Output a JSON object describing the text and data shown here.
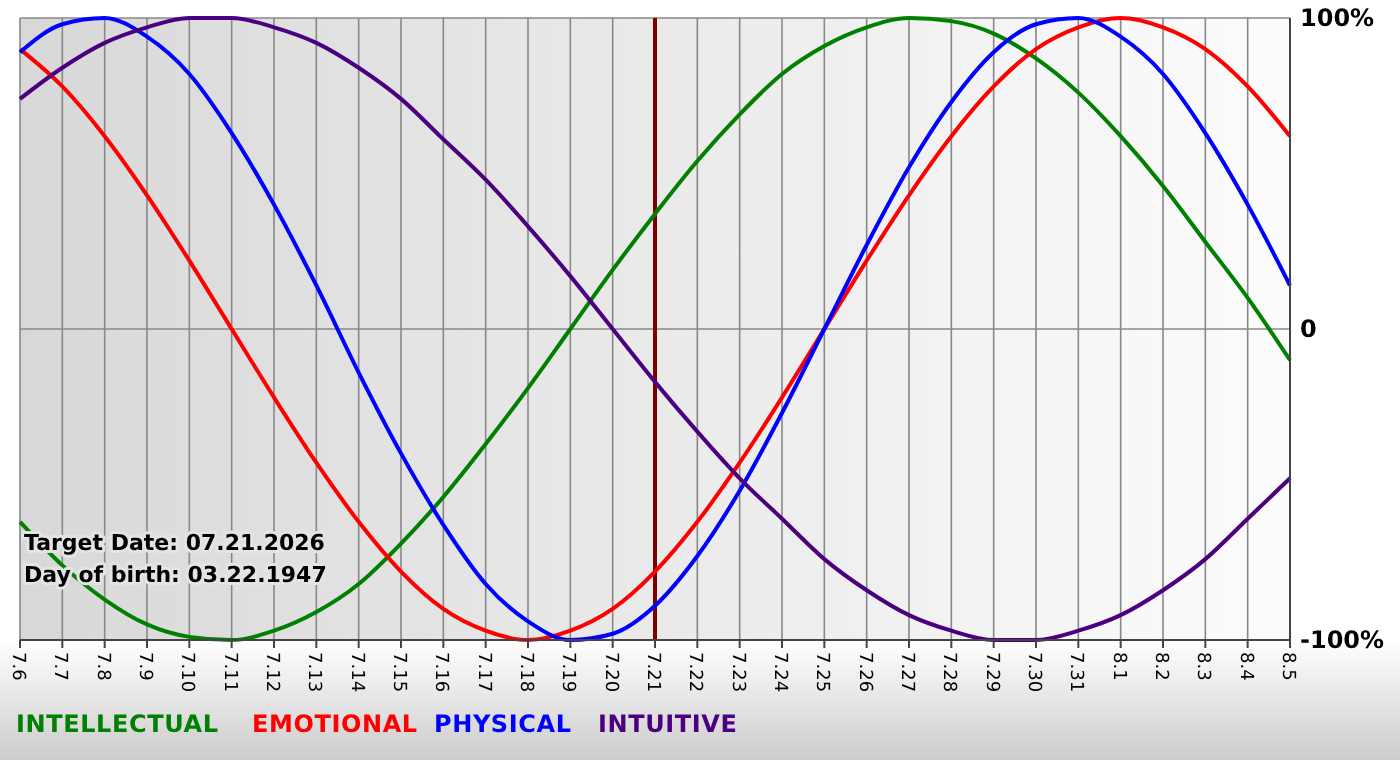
{
  "chart_data": {
    "type": "line",
    "categories": [
      "7.6",
      "7.7",
      "7.8",
      "7.9",
      "7.10",
      "7.11",
      "7.12",
      "7.13",
      "7.14",
      "7.15",
      "7.16",
      "7.17",
      "7.18",
      "7.19",
      "7.20",
      "7.21",
      "7.22",
      "7.23",
      "7.24",
      "7.25",
      "7.26",
      "7.27",
      "7.28",
      "7.29",
      "7.30",
      "7.31",
      "8.1",
      "8.2",
      "8.3",
      "8.4",
      "8.5"
    ],
    "series": [
      {
        "name": "INTELLECTUAL",
        "color": "#008000",
        "values": [
          -62,
          -76,
          -87,
          -95,
          -99,
          -100,
          -97,
          -91,
          -82,
          -69,
          -54,
          -37,
          -19,
          0,
          19,
          37,
          54,
          69,
          82,
          91,
          97,
          100,
          99,
          95,
          87,
          76,
          62,
          46,
          28,
          10,
          -10
        ]
      },
      {
        "name": "EMOTIONAL",
        "color": "#ff0000",
        "values": [
          90,
          78,
          62,
          43,
          22,
          0,
          -22,
          -43,
          -62,
          -78,
          -90,
          -97,
          -100,
          -97,
          -90,
          -78,
          -62,
          -43,
          -22,
          0,
          22,
          43,
          62,
          78,
          90,
          97,
          100,
          97,
          90,
          78,
          62
        ]
      },
      {
        "name": "PHYSICAL",
        "color": "#0000ff",
        "values": [
          89,
          98,
          100,
          94,
          82,
          63,
          40,
          14,
          -14,
          -40,
          -63,
          -82,
          -94,
          -100,
          -98,
          -89,
          -73,
          -52,
          -27,
          0,
          27,
          52,
          73,
          89,
          98,
          100,
          94,
          82,
          63,
          40,
          14
        ]
      },
      {
        "name": "INTUITIVE",
        "color": "#4b0082",
        "values": [
          74,
          84,
          92,
          97,
          100,
          100,
          97,
          92,
          84,
          74,
          61,
          48,
          33,
          17,
          0,
          -17,
          -33,
          -48,
          -61,
          -74,
          -84,
          -92,
          -97,
          -100,
          -100,
          -97,
          -92,
          -84,
          -74,
          -61,
          -48
        ]
      }
    ],
    "ylim": [
      -100,
      100
    ],
    "yticks": [
      {
        "value": 100,
        "label": "100%"
      },
      0,
      {
        "value": -100,
        "label": "-100%"
      }
    ],
    "grid": true,
    "legend": "bottom left",
    "marker": "none",
    "ref_lines": [
      {
        "axis": "x",
        "value": "7.21",
        "color": "#800000"
      }
    ],
    "annotations": [
      "Target Date: 07.21.2026",
      "Day of birth: 03.22.1947"
    ]
  }
}
